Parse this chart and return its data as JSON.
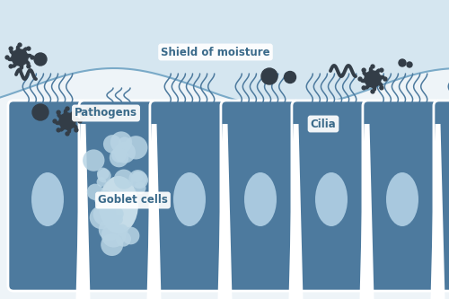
{
  "bg_color": "#eef4f8",
  "mucosa_color": "#d5e6f0",
  "cell_color": "#4d7a9e",
  "cell_lighter": "#5a8cae",
  "nucleus_color": "#a8c8de",
  "goblet_spot_color": "#b8d4e4",
  "white": "#ffffff",
  "cilia_color": "#4d7a9e",
  "pathogen_dark": "#333d47",
  "moisture_line_color": "#7aaac8",
  "label_text_color": "#3a6a8a",
  "labels": {
    "shield": "Shield of moisture",
    "pathogens": "Pathogens",
    "cilia": "Cilia",
    "goblet": "Goblet cells"
  }
}
